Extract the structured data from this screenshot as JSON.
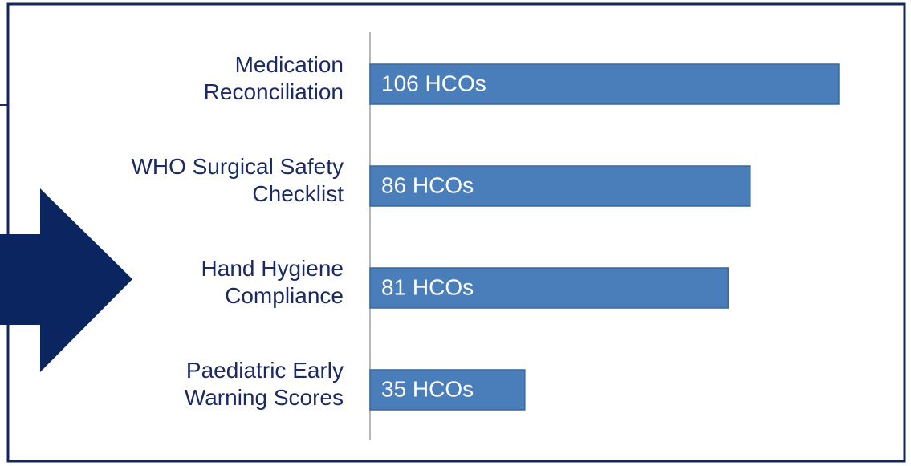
{
  "chart_data": {
    "type": "bar",
    "orientation": "horizontal",
    "categories": [
      "Medication\nReconciliation",
      "WHO Surgical Safety\nChecklist",
      "Hand Hygiene\nCompliance",
      "Paediatric Early\nWarning Scores"
    ],
    "values": [
      106,
      86,
      81,
      35
    ],
    "value_labels": [
      "106 HCOs",
      "86 HCOs",
      "81 HCOs",
      "35 HCOs"
    ],
    "color": "#4a7ebb"
  }
}
